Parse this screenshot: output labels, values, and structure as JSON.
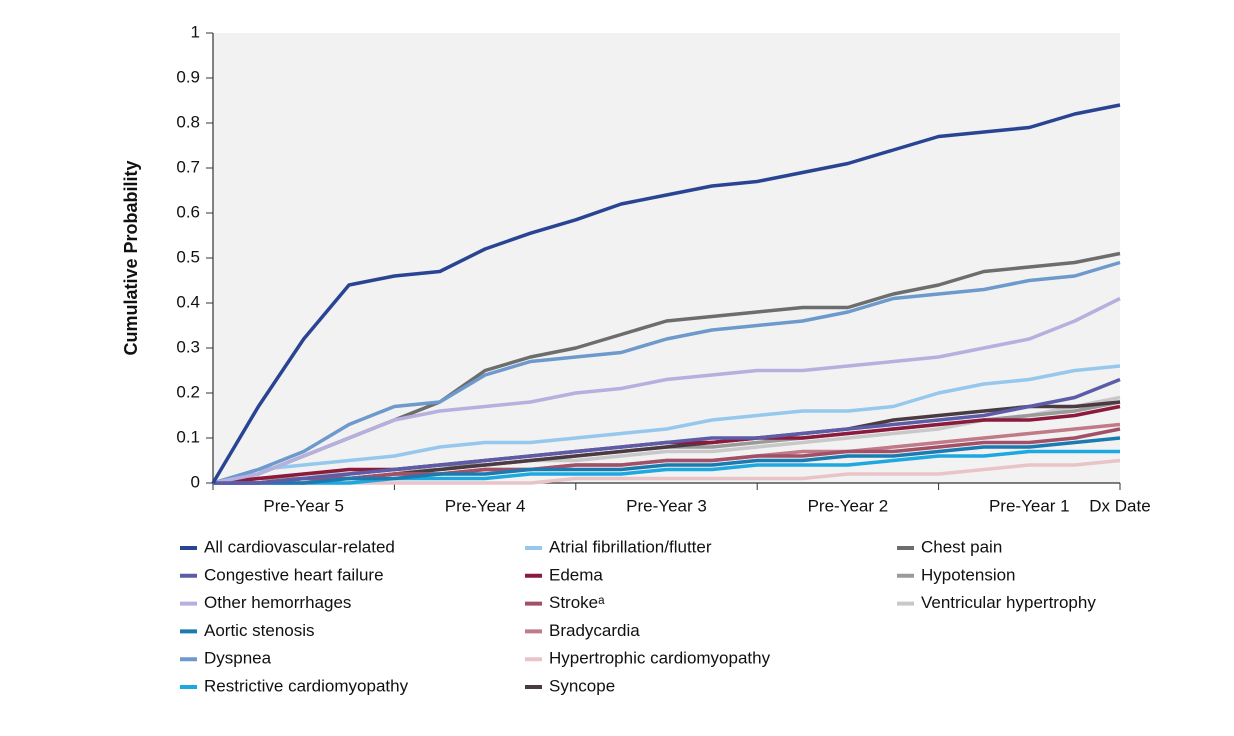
{
  "chart_data": {
    "type": "line",
    "y_label": "Cumulative  Probability",
    "xlim": [
      0,
      5
    ],
    "xticks": [
      {
        "value": 0.5,
        "label": "Pre-Year 5"
      },
      {
        "value": 1.5,
        "label": "Pre-Year 4"
      },
      {
        "value": 2.5,
        "label": "Pre-Year 3"
      },
      {
        "value": 3.5,
        "label": "Pre-Year 2"
      },
      {
        "value": 4.5,
        "label": "Pre-Year 1"
      },
      {
        "value": 5,
        "label": "Dx Date"
      }
    ],
    "xtick_marks": [
      0,
      1,
      2,
      3,
      4,
      5
    ],
    "ylim": [
      0,
      1
    ],
    "yticks": [
      0,
      0.1,
      0.2,
      0.3,
      0.4,
      0.5,
      0.6,
      0.7,
      0.8,
      0.9,
      1
    ],
    "grid": false,
    "plot_background": "#f2f2f2",
    "legend": "bottom",
    "x": [
      0,
      0.25,
      0.5,
      0.75,
      1,
      1.25,
      1.5,
      1.75,
      2,
      2.25,
      2.5,
      2.75,
      3,
      3.25,
      3.5,
      3.75,
      4,
      4.25,
      4.5,
      4.75,
      5
    ],
    "series": [
      {
        "name": "All cardiovascular-related",
        "color": "#2a4494",
        "values": [
          0,
          0.17,
          0.32,
          0.44,
          0.46,
          0.47,
          0.52,
          0.555,
          0.585,
          0.62,
          0.64,
          0.66,
          0.67,
          0.69,
          0.71,
          0.74,
          0.77,
          0.78,
          0.79,
          0.82,
          0.84
        ]
      },
      {
        "name": "Congestive heart failure",
        "color": "#5c5ca8",
        "values": [
          0,
          0,
          0.01,
          0.02,
          0.03,
          0.04,
          0.05,
          0.06,
          0.07,
          0.08,
          0.09,
          0.1,
          0.1,
          0.11,
          0.12,
          0.13,
          0.14,
          0.15,
          0.17,
          0.19,
          0.23
        ]
      },
      {
        "name": "Other hemorrhages",
        "color": "#b5b0dd",
        "values": [
          0,
          0.02,
          0.06,
          0.1,
          0.14,
          0.16,
          0.17,
          0.18,
          0.2,
          0.21,
          0.23,
          0.24,
          0.25,
          0.25,
          0.26,
          0.27,
          0.28,
          0.3,
          0.32,
          0.36,
          0.41
        ]
      },
      {
        "name": "Aortic stenosis",
        "color": "#1a7bb0",
        "values": [
          0,
          0,
          0,
          0.01,
          0.01,
          0.02,
          0.02,
          0.03,
          0.03,
          0.03,
          0.04,
          0.04,
          0.05,
          0.05,
          0.06,
          0.06,
          0.07,
          0.08,
          0.08,
          0.09,
          0.1
        ]
      },
      {
        "name": "Dyspnea",
        "color": "#6e99cc",
        "values": [
          0,
          0.03,
          0.07,
          0.13,
          0.17,
          0.18,
          0.24,
          0.27,
          0.28,
          0.29,
          0.32,
          0.34,
          0.35,
          0.36,
          0.38,
          0.41,
          0.42,
          0.43,
          0.45,
          0.46,
          0.49
        ]
      },
      {
        "name": "Restrictive cardiomyopathy",
        "color": "#1ea8e0",
        "values": [
          0,
          0,
          0,
          0,
          0.01,
          0.01,
          0.01,
          0.02,
          0.02,
          0.02,
          0.03,
          0.03,
          0.04,
          0.04,
          0.04,
          0.05,
          0.06,
          0.06,
          0.07,
          0.07,
          0.07
        ]
      },
      {
        "name": "Atrial fibrillation/flutter",
        "color": "#95c8ec",
        "values": [
          0,
          0.03,
          0.04,
          0.05,
          0.06,
          0.08,
          0.09,
          0.09,
          0.1,
          0.11,
          0.12,
          0.14,
          0.15,
          0.16,
          0.16,
          0.17,
          0.2,
          0.22,
          0.23,
          0.25,
          0.26
        ]
      },
      {
        "name": "Edema",
        "color": "#8b1a3d",
        "values": [
          0,
          0.01,
          0.02,
          0.03,
          0.03,
          0.04,
          0.05,
          0.06,
          0.07,
          0.08,
          0.09,
          0.09,
          0.1,
          0.1,
          0.11,
          0.12,
          0.13,
          0.14,
          0.14,
          0.15,
          0.17
        ]
      },
      {
        "name": "Strokeᵃ",
        "color": "#a15068",
        "values": [
          0,
          0,
          0.01,
          0.01,
          0.02,
          0.02,
          0.03,
          0.03,
          0.04,
          0.04,
          0.05,
          0.05,
          0.06,
          0.06,
          0.07,
          0.07,
          0.08,
          0.09,
          0.09,
          0.1,
          0.12
        ]
      },
      {
        "name": "Bradycardia",
        "color": "#c07a88",
        "values": [
          0,
          0,
          0.01,
          0.01,
          0.02,
          0.02,
          0.03,
          0.03,
          0.04,
          0.04,
          0.05,
          0.05,
          0.06,
          0.07,
          0.07,
          0.08,
          0.09,
          0.1,
          0.11,
          0.12,
          0.13
        ]
      },
      {
        "name": "Hypertrophic cardiomyopathy",
        "color": "#e8c4c8",
        "values": [
          0,
          0,
          0,
          0,
          0,
          0,
          0,
          0,
          0.01,
          0.01,
          0.01,
          0.01,
          0.01,
          0.01,
          0.02,
          0.02,
          0.02,
          0.03,
          0.04,
          0.04,
          0.05
        ]
      },
      {
        "name": "Syncope",
        "color": "#4a3a42",
        "values": [
          0,
          0,
          0.01,
          0.01,
          0.02,
          0.03,
          0.04,
          0.05,
          0.06,
          0.07,
          0.08,
          0.09,
          0.1,
          0.11,
          0.12,
          0.14,
          0.15,
          0.16,
          0.17,
          0.17,
          0.18
        ]
      },
      {
        "name": "Chest pain",
        "color": "#6d6d6d",
        "values": [
          0,
          0.02,
          0.06,
          0.1,
          0.14,
          0.18,
          0.25,
          0.28,
          0.3,
          0.33,
          0.36,
          0.37,
          0.38,
          0.39,
          0.39,
          0.42,
          0.44,
          0.47,
          0.48,
          0.49,
          0.51
        ]
      },
      {
        "name": "Hypotension",
        "color": "#9a9a9a",
        "values": [
          0,
          0.01,
          0.01,
          0.02,
          0.03,
          0.04,
          0.04,
          0.05,
          0.06,
          0.07,
          0.08,
          0.08,
          0.09,
          0.1,
          0.11,
          0.12,
          0.13,
          0.14,
          0.15,
          0.16,
          0.18
        ]
      },
      {
        "name": "Ventricular hypertrophy",
        "color": "#c8c8c8",
        "values": [
          0,
          0.01,
          0.02,
          0.02,
          0.03,
          0.03,
          0.04,
          0.05,
          0.05,
          0.06,
          0.07,
          0.07,
          0.08,
          0.09,
          0.1,
          0.11,
          0.12,
          0.14,
          0.15,
          0.17,
          0.19
        ]
      }
    ]
  }
}
